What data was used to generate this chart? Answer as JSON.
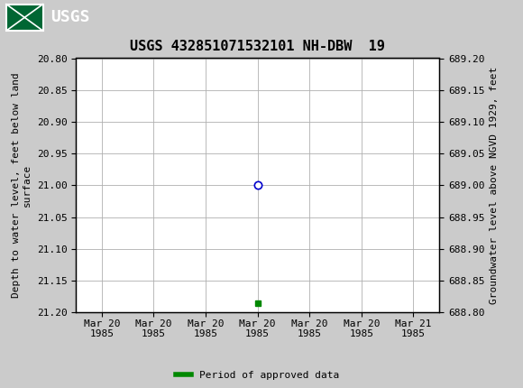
{
  "title": "USGS 432851071532101 NH-DBW  19",
  "header_bg_color": "#006633",
  "plot_bg_color": "#ffffff",
  "outer_bg_color": "#cbcbcb",
  "grid_color": "#b0b0b0",
  "left_ylabel": "Depth to water level, feet below land\nsurface",
  "right_ylabel": "Groundwater level above NGVD 1929, feet",
  "ylim_left_top": 20.8,
  "ylim_left_bottom": 21.2,
  "ylim_right_top": 689.2,
  "ylim_right_bottom": 688.8,
  "y_ticks_left": [
    20.8,
    20.85,
    20.9,
    20.95,
    21.0,
    21.05,
    21.1,
    21.15,
    21.2
  ],
  "y_ticks_right": [
    689.2,
    689.15,
    689.1,
    689.05,
    689.0,
    688.95,
    688.9,
    688.85,
    688.8
  ],
  "x_tick_labels": [
    "Mar 20\n1985",
    "Mar 20\n1985",
    "Mar 20\n1985",
    "Mar 20\n1985",
    "Mar 20\n1985",
    "Mar 20\n1985",
    "Mar 21\n1985"
  ],
  "x_tick_positions": [
    0,
    1,
    2,
    3,
    4,
    5,
    6
  ],
  "data_point_x": 3.0,
  "data_point_y": 21.0,
  "data_point_color": "#0000cc",
  "green_square_x": 3.0,
  "green_square_y": 21.185,
  "green_square_color": "#008800",
  "legend_label": "Period of approved data",
  "legend_color": "#008800",
  "font_family": "monospace",
  "title_fontsize": 11,
  "tick_fontsize": 8,
  "label_fontsize": 8,
  "legend_fontsize": 8
}
